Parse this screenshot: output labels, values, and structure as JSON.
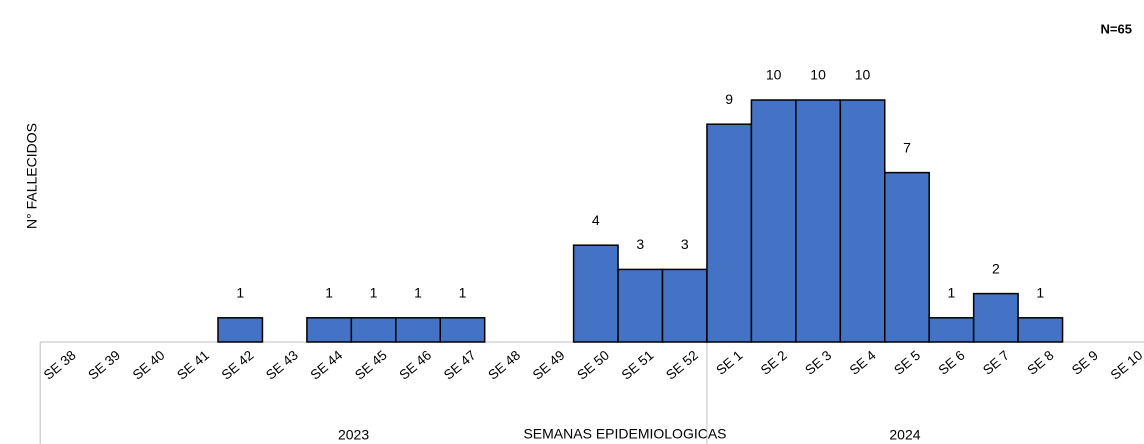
{
  "chart_data": {
    "type": "bar",
    "note": "N=65",
    "x_label": "SEMANAS EPIDEMIOLOGICAS",
    "y_label": "N° FALLECIDOS",
    "categories": [
      "SE 38",
      "SE 39",
      "SE 40",
      "SE 41",
      "SE 42",
      "SE 43",
      "SE 44",
      "SE 45",
      "SE 46",
      "SE 47",
      "SE 48",
      "SE 49",
      "SE 50",
      "SE 51",
      "SE 52",
      "SE 1",
      "SE 2",
      "SE 3",
      "SE 4",
      "SE 5",
      "SE 6",
      "SE 7",
      "SE 8",
      "SE 9",
      "SE 10"
    ],
    "values": [
      null,
      null,
      null,
      null,
      1,
      null,
      1,
      1,
      1,
      1,
      null,
      null,
      4,
      3,
      3,
      9,
      10,
      10,
      10,
      7,
      1,
      2,
      1,
      null,
      null
    ],
    "groups": [
      {
        "label": "2023",
        "from": "SE 38",
        "to": "SE 52"
      },
      {
        "label": "2024",
        "from": "SE 1",
        "to": "SE 10"
      }
    ],
    "color": "#4472c4",
    "ylim": [
      0,
      10
    ]
  }
}
